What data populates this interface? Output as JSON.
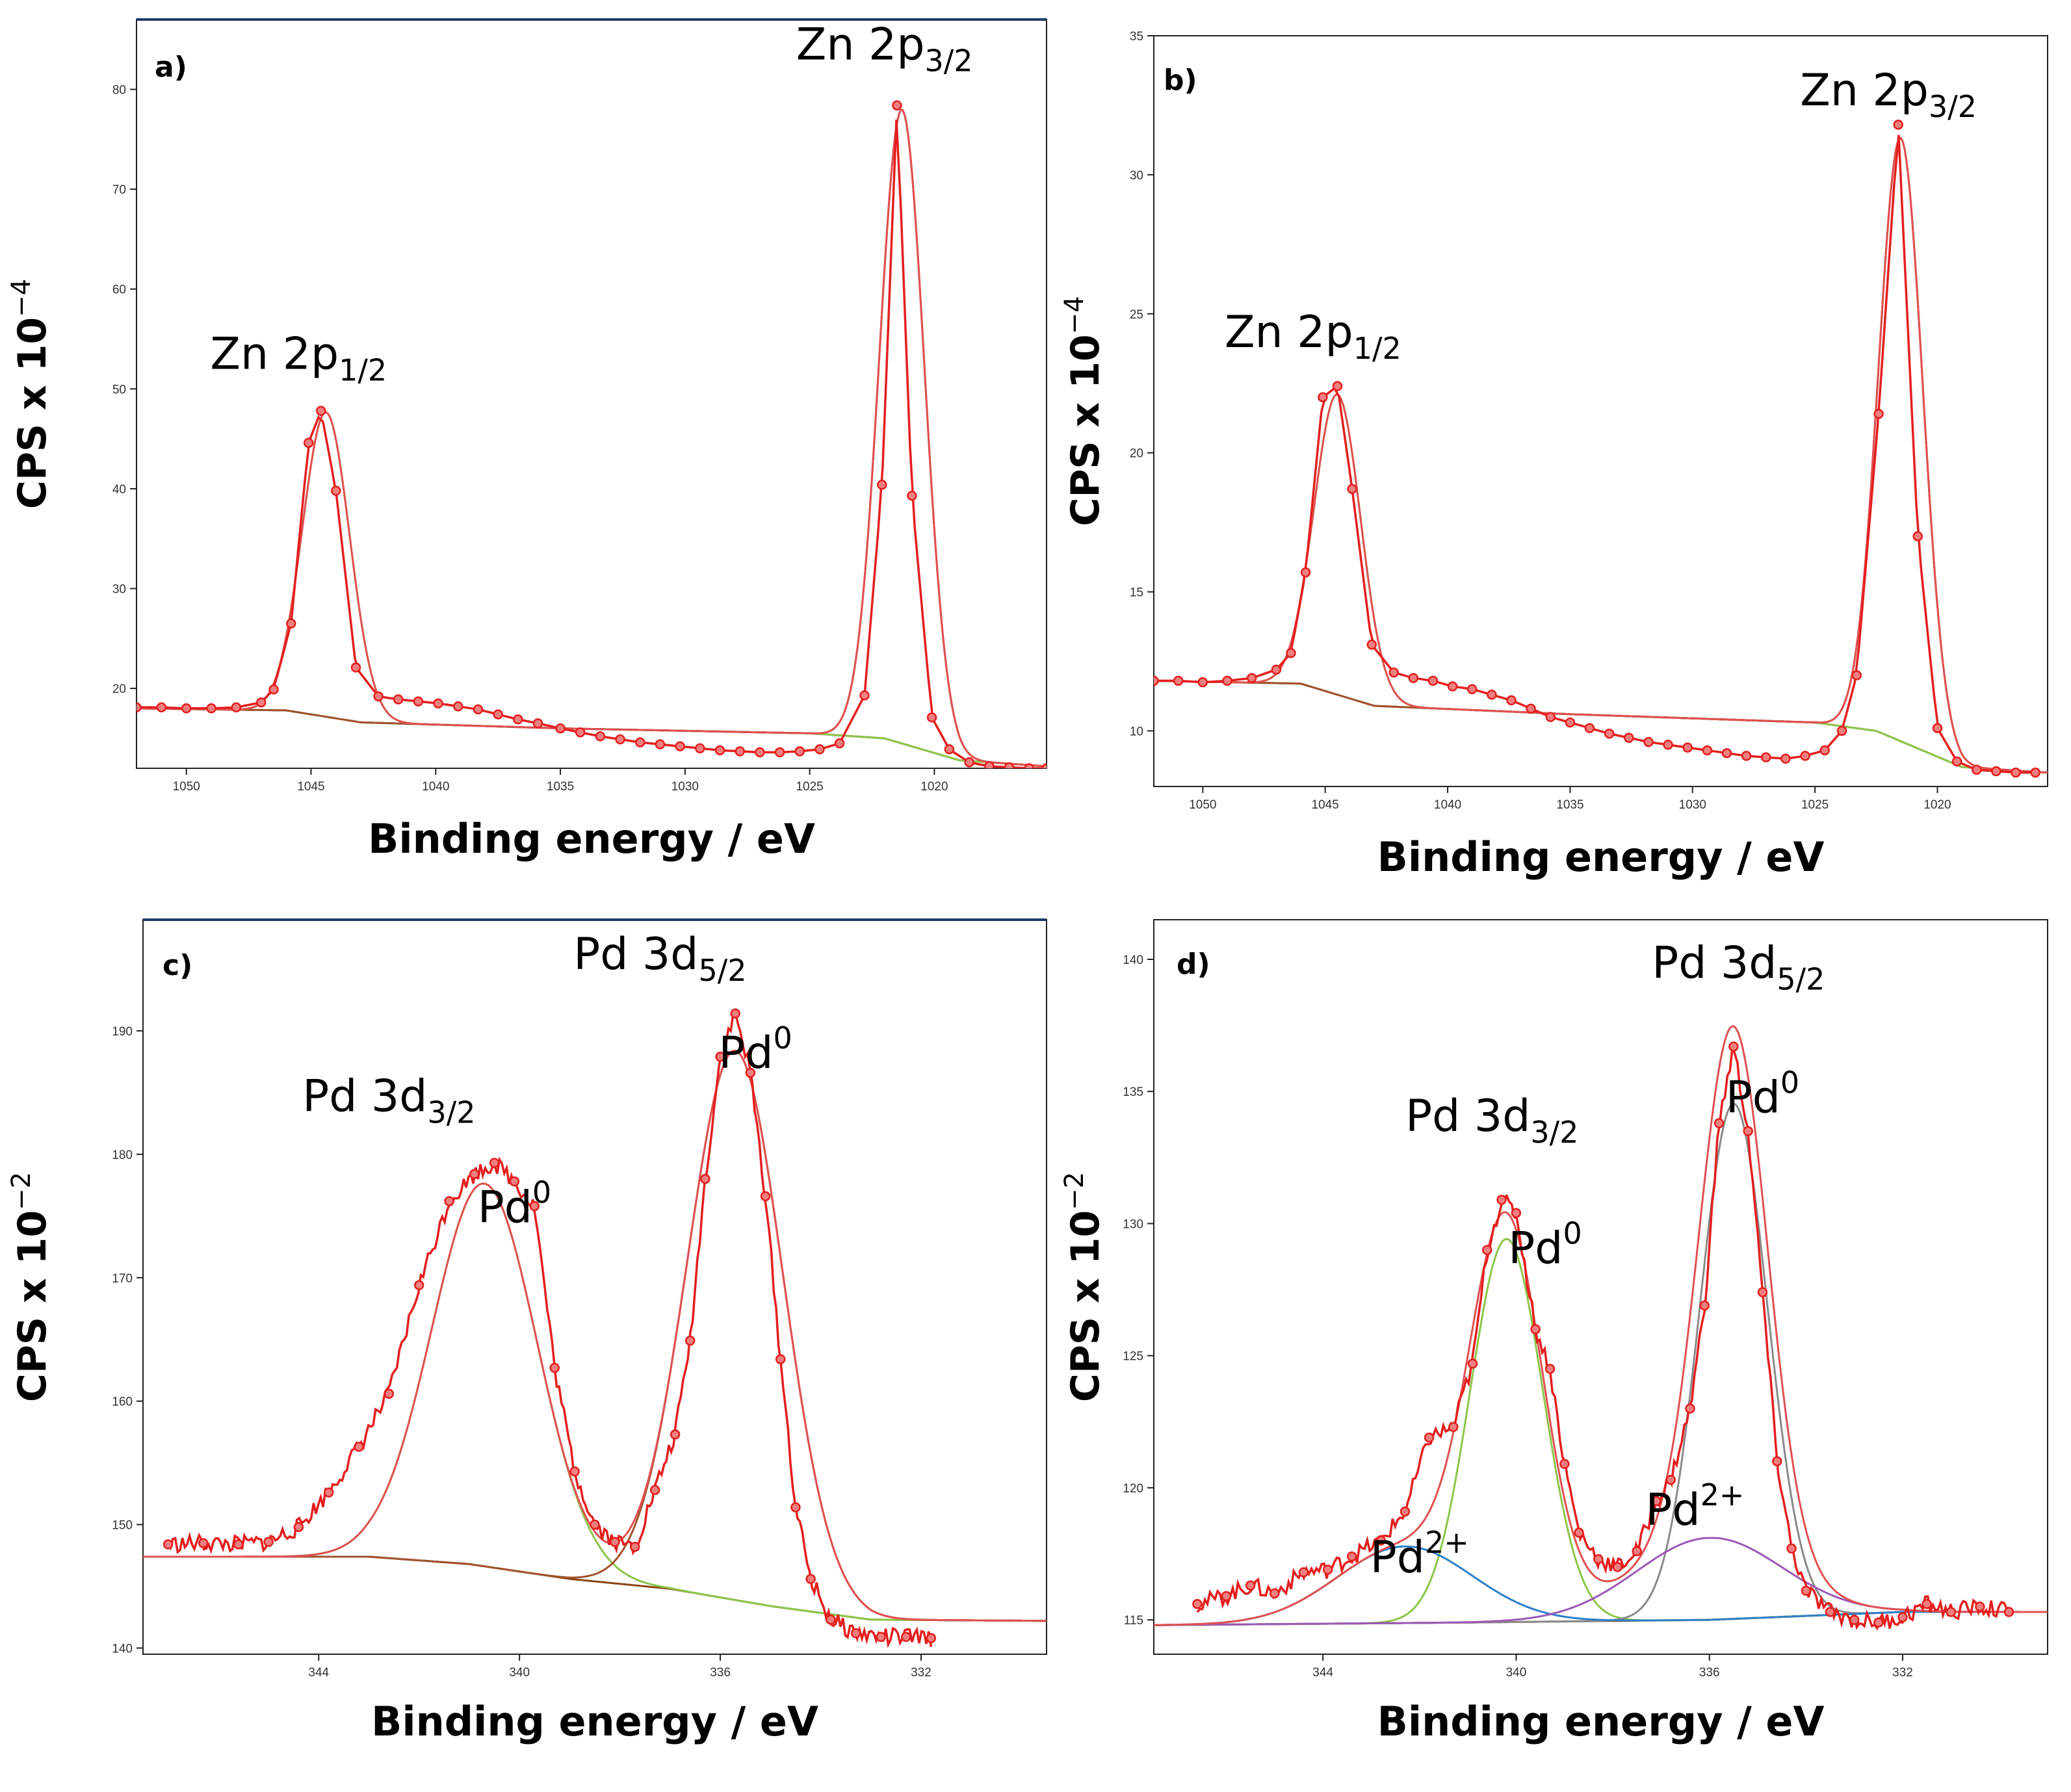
{
  "colors": {
    "data": "#e41f1f",
    "envelope": "#e05050",
    "background": "#8b4513",
    "comp_green": "#8dc54b",
    "comp_brown": "#a0522d",
    "comp_blue": "#2e7fc9",
    "comp_purple": "#9b59b6",
    "comp_gray": "#8a8a8a"
  },
  "chart_data": [
    {
      "type": "line",
      "panel_label": "a)",
      "xlabel": "Binding energy / eV",
      "ylabel_prefix": "CPS x 10",
      "ylabel_exp": "−4",
      "xlim": [
        1052,
        1015.5
      ],
      "ylim": [
        12,
        87
      ],
      "xticks": [
        1050,
        1045,
        1040,
        1035,
        1030,
        1025,
        1020
      ],
      "yticks": [
        20,
        30,
        40,
        50,
        60,
        70,
        80
      ],
      "annotations": [
        {
          "base": "Zn 2p",
          "sub": "1/2",
          "sup": "",
          "x": 1045.5,
          "y": 52
        },
        {
          "base": "Zn 2p",
          "sub": "3/2",
          "sup": "",
          "x": 1022,
          "y": 83
        }
      ],
      "peaks": [
        {
          "center": 1044.4,
          "height": 30.5,
          "width": 0.95
        },
        {
          "center": 1021.3,
          "height": 63.5,
          "width": 0.9
        }
      ],
      "background": [
        [
          1052,
          18.0
        ],
        [
          1046,
          17.8
        ],
        [
          1043,
          16.6
        ],
        [
          1035,
          16.0
        ],
        [
          1025,
          15.5
        ],
        [
          1022,
          15.0
        ],
        [
          1019,
          12.8
        ],
        [
          1015.5,
          12.2
        ]
      ],
      "data_points": [
        [
          1052,
          18.1
        ],
        [
          1051,
          18.1
        ],
        [
          1050,
          18.0
        ],
        [
          1049,
          18.0
        ],
        [
          1048,
          18.1
        ],
        [
          1047,
          18.6
        ],
        [
          1046.5,
          19.9
        ],
        [
          1045.8,
          26.5
        ],
        [
          1045.1,
          44.6
        ],
        [
          1044.6,
          47.8
        ],
        [
          1044.0,
          39.8
        ],
        [
          1043.2,
          22.1
        ],
        [
          1042.3,
          19.2
        ],
        [
          1041.5,
          18.9
        ],
        [
          1040.7,
          18.7
        ],
        [
          1039.9,
          18.5
        ],
        [
          1039.1,
          18.2
        ],
        [
          1038.3,
          17.9
        ],
        [
          1037.5,
          17.4
        ],
        [
          1036.7,
          16.9
        ],
        [
          1035.9,
          16.5
        ],
        [
          1035.0,
          16.0
        ],
        [
          1034.2,
          15.6
        ],
        [
          1033.4,
          15.2
        ],
        [
          1032.6,
          14.9
        ],
        [
          1031.8,
          14.6
        ],
        [
          1031.0,
          14.4
        ],
        [
          1030.2,
          14.2
        ],
        [
          1029.4,
          14.0
        ],
        [
          1028.6,
          13.8
        ],
        [
          1027.8,
          13.7
        ],
        [
          1027.0,
          13.6
        ],
        [
          1026.2,
          13.6
        ],
        [
          1025.4,
          13.7
        ],
        [
          1024.6,
          13.9
        ],
        [
          1023.8,
          14.5
        ],
        [
          1022.8,
          19.3
        ],
        [
          1022.1,
          40.4
        ],
        [
          1021.5,
          78.4
        ],
        [
          1020.9,
          39.3
        ],
        [
          1020.1,
          17.1
        ],
        [
          1019.4,
          13.9
        ],
        [
          1018.6,
          12.6
        ],
        [
          1017.8,
          12.2
        ],
        [
          1017.0,
          12.1
        ],
        [
          1016.2,
          12.0
        ],
        [
          1015.5,
          12.0
        ]
      ]
    },
    {
      "type": "line",
      "panel_label": "b)",
      "xlabel": "Binding energy / eV",
      "ylabel_prefix": "CPS x 10",
      "ylabel_exp": "−4",
      "xlim": [
        1052,
        1015.5
      ],
      "ylim": [
        8,
        35
      ],
      "xticks": [
        1050,
        1045,
        1040,
        1035,
        1030,
        1025,
        1020
      ],
      "yticks": [
        10,
        15,
        20,
        25,
        30,
        35
      ],
      "annotations": [
        {
          "base": "Zn 2p",
          "sub": "1/2",
          "sup": "",
          "x": 1045.5,
          "y": 23.8
        },
        {
          "base": "Zn 2p",
          "sub": "3/2",
          "sup": "",
          "x": 1022,
          "y": 32.5
        }
      ],
      "peaks": [
        {
          "center": 1044.5,
          "height": 10.8,
          "width": 0.95
        },
        {
          "center": 1021.5,
          "height": 21.7,
          "width": 0.9
        }
      ],
      "background": [
        [
          1052,
          11.8
        ],
        [
          1046,
          11.7
        ],
        [
          1043,
          10.9
        ],
        [
          1035,
          10.6
        ],
        [
          1025,
          10.3
        ],
        [
          1022.5,
          10.0
        ],
        [
          1019,
          8.7
        ],
        [
          1015.5,
          8.5
        ]
      ],
      "data_points": [
        [
          1052,
          11.8
        ],
        [
          1051,
          11.8
        ],
        [
          1050,
          11.75
        ],
        [
          1049,
          11.8
        ],
        [
          1048,
          11.9
        ],
        [
          1047,
          12.2
        ],
        [
          1046.4,
          12.8
        ],
        [
          1045.8,
          15.7
        ],
        [
          1045.1,
          22.0
        ],
        [
          1044.5,
          22.4
        ],
        [
          1043.9,
          18.7
        ],
        [
          1043.1,
          13.1
        ],
        [
          1042.2,
          12.1
        ],
        [
          1041.4,
          11.9
        ],
        [
          1040.6,
          11.8
        ],
        [
          1039.8,
          11.6
        ],
        [
          1039.0,
          11.5
        ],
        [
          1038.2,
          11.3
        ],
        [
          1037.4,
          11.1
        ],
        [
          1036.6,
          10.8
        ],
        [
          1035.8,
          10.5
        ],
        [
          1035.0,
          10.3
        ],
        [
          1034.2,
          10.1
        ],
        [
          1033.4,
          9.9
        ],
        [
          1032.6,
          9.75
        ],
        [
          1031.8,
          9.6
        ],
        [
          1031.0,
          9.5
        ],
        [
          1030.2,
          9.4
        ],
        [
          1029.4,
          9.3
        ],
        [
          1028.6,
          9.2
        ],
        [
          1027.8,
          9.1
        ],
        [
          1027.0,
          9.05
        ],
        [
          1026.2,
          9.0
        ],
        [
          1025.4,
          9.1
        ],
        [
          1024.6,
          9.3
        ],
        [
          1023.9,
          10.0
        ],
        [
          1023.3,
          12.0
        ],
        [
          1022.4,
          21.4
        ],
        [
          1021.6,
          31.8
        ],
        [
          1020.8,
          17.0
        ],
        [
          1020.0,
          10.1
        ],
        [
          1019.2,
          8.9
        ],
        [
          1018.4,
          8.6
        ],
        [
          1017.6,
          8.55
        ],
        [
          1016.8,
          8.5
        ],
        [
          1016.0,
          8.5
        ]
      ]
    },
    {
      "type": "line",
      "panel_label": "c)",
      "xlabel": "Binding energy / eV",
      "ylabel_prefix": "CPS x 10",
      "ylabel_exp": "−2",
      "xlim": [
        347.5,
        329.5
      ],
      "ylim": [
        139.5,
        199
      ],
      "xticks": [
        344,
        340,
        336,
        332
      ],
      "yticks": [
        140,
        150,
        160,
        170,
        180,
        190
      ],
      "annotations": [
        {
          "base": "Pd 3d",
          "sub": "5/2",
          "sup": "",
          "x": 337.2,
          "y": 195
        },
        {
          "base": "Pd",
          "sub": "",
          "sup": "0",
          "x": 335.3,
          "y": 187
        },
        {
          "base": "Pd 3d",
          "sub": "3/2",
          "sup": "",
          "x": 342.6,
          "y": 183.5
        },
        {
          "base": "Pd",
          "sub": "",
          "sup": "0",
          "x": 340.1,
          "y": 174.5
        }
      ],
      "peaks": [
        {
          "center": 340.7,
          "height": 31.0,
          "width": 1.05
        },
        {
          "center": 335.7,
          "height": 44.5,
          "width": 0.95
        }
      ],
      "background": [
        [
          347.5,
          147.4
        ],
        [
          343,
          147.4
        ],
        [
          341,
          146.8
        ],
        [
          339,
          145.6
        ],
        [
          337,
          144.8
        ],
        [
          335,
          143.4
        ],
        [
          333,
          142.3
        ],
        [
          329.5,
          142.2
        ]
      ],
      "data_points": [
        [
          347.0,
          148.4
        ],
        [
          346.3,
          148.5
        ],
        [
          345.6,
          148.4
        ],
        [
          345.0,
          148.6
        ],
        [
          344.4,
          149.8
        ],
        [
          343.8,
          152.6
        ],
        [
          343.2,
          156.3
        ],
        [
          342.6,
          160.6
        ],
        [
          342.0,
          169.4
        ],
        [
          341.4,
          176.2
        ],
        [
          340.9,
          178.4
        ],
        [
          340.5,
          179.3
        ],
        [
          340.1,
          177.8
        ],
        [
          339.7,
          175.8
        ],
        [
          339.3,
          162.7
        ],
        [
          338.9,
          154.3
        ],
        [
          338.5,
          150.0
        ],
        [
          338.1,
          148.6
        ],
        [
          337.7,
          148.2
        ],
        [
          337.3,
          152.8
        ],
        [
          336.9,
          157.3
        ],
        [
          336.6,
          164.9
        ],
        [
          336.3,
          178.0
        ],
        [
          336.0,
          187.9
        ],
        [
          335.7,
          191.4
        ],
        [
          335.4,
          186.6
        ],
        [
          335.1,
          176.6
        ],
        [
          334.8,
          163.4
        ],
        [
          334.5,
          151.4
        ],
        [
          334.2,
          145.6
        ],
        [
          333.8,
          142.3
        ],
        [
          333.3,
          141.2
        ],
        [
          332.8,
          140.9
        ],
        [
          332.3,
          140.9
        ],
        [
          331.8,
          140.8
        ]
      ]
    },
    {
      "type": "line",
      "panel_label": "d)",
      "xlabel": "Binding energy / eV",
      "ylabel_prefix": "CPS x 10",
      "ylabel_exp": "−2",
      "xlim": [
        347.5,
        329.0
      ],
      "ylim": [
        113.7,
        141.5
      ],
      "xticks": [
        344,
        340,
        336,
        332
      ],
      "yticks": [
        115,
        120,
        125,
        130,
        135,
        140
      ],
      "annotations": [
        {
          "base": "Pd 3d",
          "sub": "5/2",
          "sup": "",
          "x": 335.4,
          "y": 139.3
        },
        {
          "base": "Pd",
          "sub": "",
          "sup": "0",
          "x": 334.9,
          "y": 134.2
        },
        {
          "base": "Pd 3d",
          "sub": "3/2",
          "sup": "",
          "x": 340.5,
          "y": 133.5
        },
        {
          "base": "Pd",
          "sub": "",
          "sup": "0",
          "x": 339.4,
          "y": 128.5
        },
        {
          "base": "Pd",
          "sub": "",
          "sup": "2+",
          "x": 342.0,
          "y": 116.8
        },
        {
          "base": "Pd",
          "sub": "",
          "sup": "2+",
          "x": 336.3,
          "y": 118.6
        }
      ],
      "peaks": [
        {
          "center": 340.2,
          "height": 14.5,
          "width": 0.75
        },
        {
          "center": 335.5,
          "height": 19.5,
          "width": 0.7
        },
        {
          "center": 342.3,
          "height": 2.9,
          "width": 1.4
        },
        {
          "center": 336.0,
          "height": 3.1,
          "width": 1.5
        }
      ],
      "background": [
        [
          347.5,
          114.8
        ],
        [
          341,
          114.9
        ],
        [
          336,
          115.0
        ],
        [
          332,
          115.3
        ],
        [
          329.0,
          115.3
        ]
      ],
      "data_points": [
        [
          346.6,
          115.6
        ],
        [
          346.0,
          115.9
        ],
        [
          345.5,
          116.3
        ],
        [
          345.0,
          116.0
        ],
        [
          344.4,
          116.8
        ],
        [
          343.9,
          116.9
        ],
        [
          343.4,
          117.4
        ],
        [
          342.8,
          118.0
        ],
        [
          342.3,
          119.1
        ],
        [
          341.8,
          121.9
        ],
        [
          341.3,
          122.3
        ],
        [
          340.9,
          124.7
        ],
        [
          340.6,
          129.0
        ],
        [
          340.3,
          130.9
        ],
        [
          340.0,
          130.4
        ],
        [
          339.6,
          126.0
        ],
        [
          339.3,
          124.5
        ],
        [
          339.0,
          120.9
        ],
        [
          338.7,
          118.3
        ],
        [
          338.3,
          117.3
        ],
        [
          337.9,
          117.0
        ],
        [
          337.5,
          117.6
        ],
        [
          337.1,
          119.5
        ],
        [
          336.8,
          120.3
        ],
        [
          336.4,
          123.0
        ],
        [
          336.1,
          126.9
        ],
        [
          335.8,
          133.8
        ],
        [
          335.5,
          136.7
        ],
        [
          335.2,
          133.5
        ],
        [
          334.9,
          127.4
        ],
        [
          334.6,
          121.0
        ],
        [
          334.3,
          117.7
        ],
        [
          334.0,
          116.1
        ],
        [
          333.5,
          115.3
        ],
        [
          333.0,
          115.0
        ],
        [
          332.5,
          114.9
        ],
        [
          332.0,
          115.1
        ],
        [
          331.5,
          115.6
        ],
        [
          331.0,
          115.3
        ],
        [
          330.4,
          115.5
        ],
        [
          329.8,
          115.3
        ]
      ]
    }
  ]
}
